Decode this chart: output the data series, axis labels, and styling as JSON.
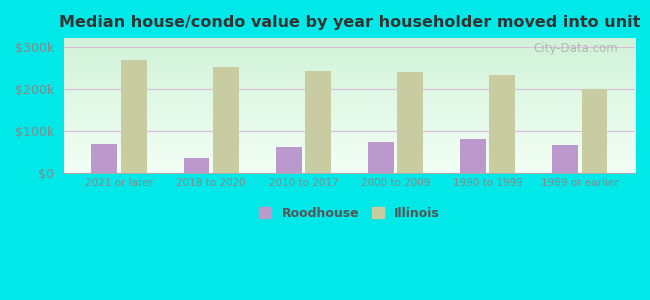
{
  "title": "Median house/condo value by year householder moved into unit",
  "categories": [
    "2021 or later",
    "2018 to 2020",
    "2010 to 2017",
    "2000 to 2009",
    "1990 to 1999",
    "1989 or earlier"
  ],
  "roodhouse": [
    70000,
    35000,
    62000,
    73000,
    80000,
    68000
  ],
  "illinois": [
    268000,
    252000,
    242000,
    240000,
    232000,
    200000
  ],
  "roodhouse_color": "#bb99cc",
  "illinois_color": "#c8cca0",
  "background_outer": "#00e8e8",
  "ylabel_color": "#888888",
  "title_color": "#333333",
  "ylim": [
    0,
    320000
  ],
  "yticks": [
    0,
    100000,
    200000,
    300000
  ],
  "watermark": "City-Data.com",
  "legend_roodhouse": "Roodhouse",
  "legend_illinois": "Illinois"
}
